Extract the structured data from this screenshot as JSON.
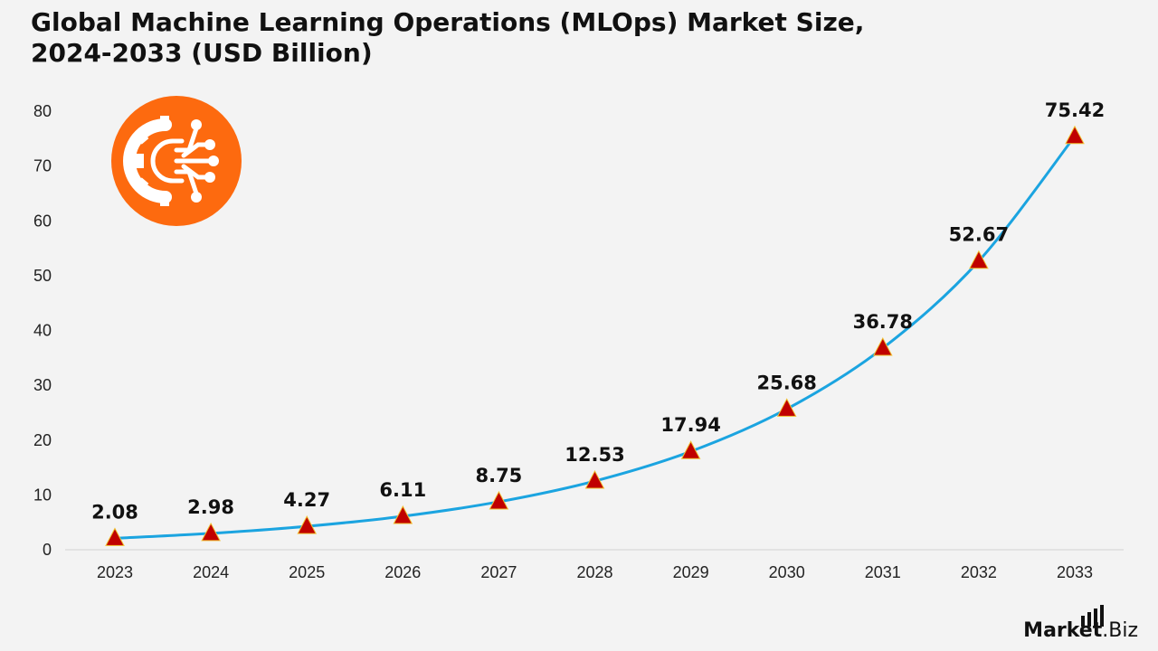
{
  "title_line1": "Global Machine Learning Operations (MLOps) Market Size,",
  "title_line2": "2024-2033 (USD Billion)",
  "brand": {
    "name": "Market",
    "suffix": ".Biz"
  },
  "colors": {
    "line": "#1ba4e0",
    "marker": "#c00000",
    "marker_edge": "#f0c030",
    "icon_bg": "#fd6a0f",
    "axis": "#d0d0d0"
  },
  "icon": "ai-gear-circuit-icon",
  "chart_data": {
    "type": "line",
    "title": "Global Machine Learning Operations (MLOps) Market Size, 2024-2033 (USD Billion)",
    "xlabel": "",
    "ylabel": "",
    "categories": [
      "2023",
      "2024",
      "2025",
      "2026",
      "2027",
      "2028",
      "2029",
      "2030",
      "2031",
      "2032",
      "2033"
    ],
    "values": [
      2.08,
      2.98,
      4.27,
      6.11,
      8.75,
      12.53,
      17.94,
      25.68,
      36.78,
      52.67,
      75.42
    ],
    "value_labels": [
      "2.08",
      "2.98",
      "4.27",
      "6.11",
      "8.75",
      "12.53",
      "17.94",
      "25.68",
      "36.78",
      "52.67",
      "75.42"
    ],
    "ylim": [
      0,
      80
    ],
    "yticks": [
      "0",
      "10",
      "20",
      "30",
      "40",
      "50",
      "60",
      "70",
      "80"
    ],
    "grid": false,
    "marker": "triangle"
  }
}
